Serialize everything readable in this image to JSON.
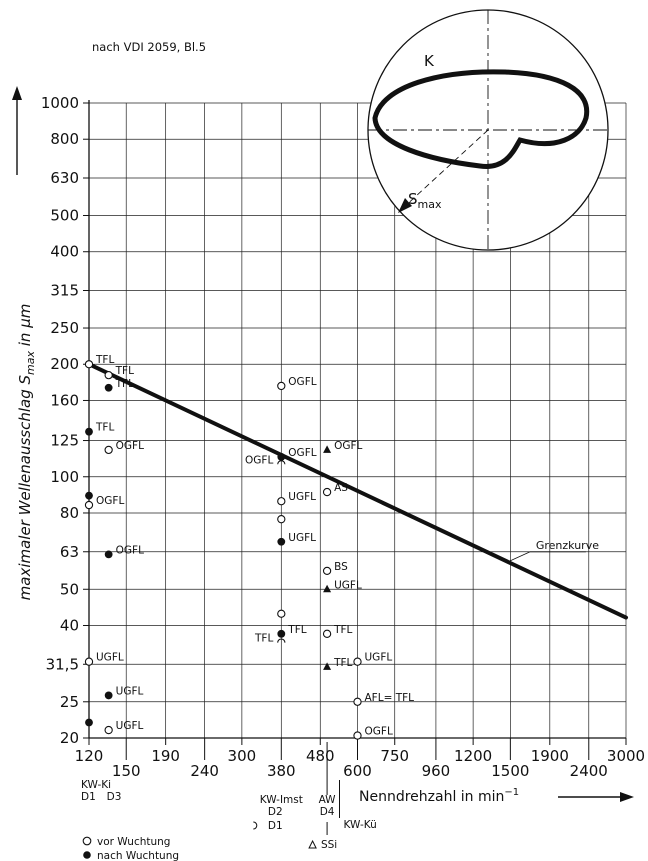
{
  "chart_data": {
    "type": "scatter",
    "source_note": "nach VDI 2059, Bl.5",
    "ylabel_prefix": "maximaler Wellenausschlag S",
    "ylabel_sub": "max",
    "ylabel_suffix": " in µm",
    "xlabel_main": "Nenndrehzahl in min",
    "xlabel_sup": "−1",
    "y_ticks": [
      "1000",
      "800",
      "630",
      "500",
      "400",
      "315",
      "250",
      "200",
      "160",
      "125",
      "100",
      "80",
      "63",
      "50",
      "40",
      "31,5",
      "25",
      "20"
    ],
    "x_ticks_upper": [
      "120",
      "190",
      "300",
      "480",
      "750",
      "1200",
      "1900",
      "3000"
    ],
    "x_ticks_lower": [
      "150",
      "240",
      "380",
      "600",
      "960",
      "1500",
      "2400"
    ],
    "machine_labels": [
      {
        "text": "KW-Ki",
        "pos": 120
      },
      {
        "text": "D1",
        "pos": 120
      },
      {
        "text": "D3",
        "pos": 135
      },
      {
        "text": "KW-Imst",
        "pos": 380
      },
      {
        "text": "D2",
        "pos": 380
      },
      {
        "text": "D1",
        "pos": 380
      },
      {
        "text": "AW",
        "pos": 500
      },
      {
        "text": "D4",
        "pos": 500
      },
      {
        "text": "SSi",
        "pos": 500
      },
      {
        "text": "KW-Kü",
        "pos": 600
      }
    ],
    "limit_curve": {
      "name": "Grenzkurve",
      "x": [
        120,
        3000
      ],
      "y": [
        200,
        42
      ]
    },
    "legend": [
      {
        "symbol": "open-circle",
        "label": "vor Wuchtung"
      },
      {
        "symbol": "filled-circle",
        "label": "nach Wuchtung"
      }
    ],
    "series": [
      {
        "name": "vor Wuchtung",
        "symbol": "open-circle",
        "points": [
          {
            "x": 120,
            "y": 200,
            "label": "TFL"
          },
          {
            "x": 135,
            "y": 187,
            "label": "TFL"
          },
          {
            "x": 135,
            "y": 118,
            "label": "OGFL"
          },
          {
            "x": 120,
            "y": 84,
            "label": "OGFL"
          },
          {
            "x": 120,
            "y": 32,
            "label": "UGFL"
          },
          {
            "x": 135,
            "y": 21,
            "label": "UGFL"
          },
          {
            "x": 380,
            "y": 175,
            "label": "OGFL"
          },
          {
            "x": 380,
            "y": 86,
            "label": "UGFL"
          },
          {
            "x": 380,
            "y": 77,
            "label": ""
          },
          {
            "x": 380,
            "y": 43,
            "label": ""
          },
          {
            "x": 500,
            "y": 91,
            "label": "AS"
          },
          {
            "x": 500,
            "y": 56,
            "label": "BS"
          },
          {
            "x": 500,
            "y": 38,
            "label": "TFL"
          },
          {
            "x": 600,
            "y": 32,
            "label": "UGFL"
          },
          {
            "x": 600,
            "y": 25,
            "label": "AFL= TFL"
          },
          {
            "x": 600,
            "y": 20.3,
            "label": "OGFL"
          }
        ]
      },
      {
        "name": "nach Wuchtung",
        "symbol": "filled-circle",
        "points": [
          {
            "x": 135,
            "y": 173,
            "label": "TFL"
          },
          {
            "x": 120,
            "y": 132,
            "label": "TFL"
          },
          {
            "x": 120,
            "y": 89,
            "label": ""
          },
          {
            "x": 135,
            "y": 62,
            "label": "OGFL"
          },
          {
            "x": 135,
            "y": 26,
            "label": "UGFL"
          },
          {
            "x": 120,
            "y": 22,
            "label": ""
          },
          {
            "x": 380,
            "y": 113,
            "label": "OGFL"
          },
          {
            "x": 380,
            "y": 67,
            "label": "UGFL"
          },
          {
            "x": 380,
            "y": 38,
            "label": "TFL"
          }
        ]
      },
      {
        "name": "D1",
        "symbol": "half-circle",
        "points": [
          {
            "x": 380,
            "y": 108,
            "label": "OGFL"
          },
          {
            "x": 380,
            "y": 36,
            "label": "TFL"
          }
        ]
      },
      {
        "name": "SSi",
        "symbol": "triangle",
        "points": [
          {
            "x": 500,
            "y": 118,
            "label": "OGFL"
          },
          {
            "x": 500,
            "y": 50,
            "label": "UGFL"
          },
          {
            "x": 500,
            "y": 31,
            "label": "TFL"
          }
        ]
      }
    ],
    "inset": {
      "label_k": "K",
      "label_s": "S",
      "label_s_sub": "max"
    },
    "ylim": [
      20,
      1000
    ],
    "xlim": [
      120,
      3000
    ],
    "x_scale": "log",
    "y_scale": "log",
    "grid": true
  }
}
